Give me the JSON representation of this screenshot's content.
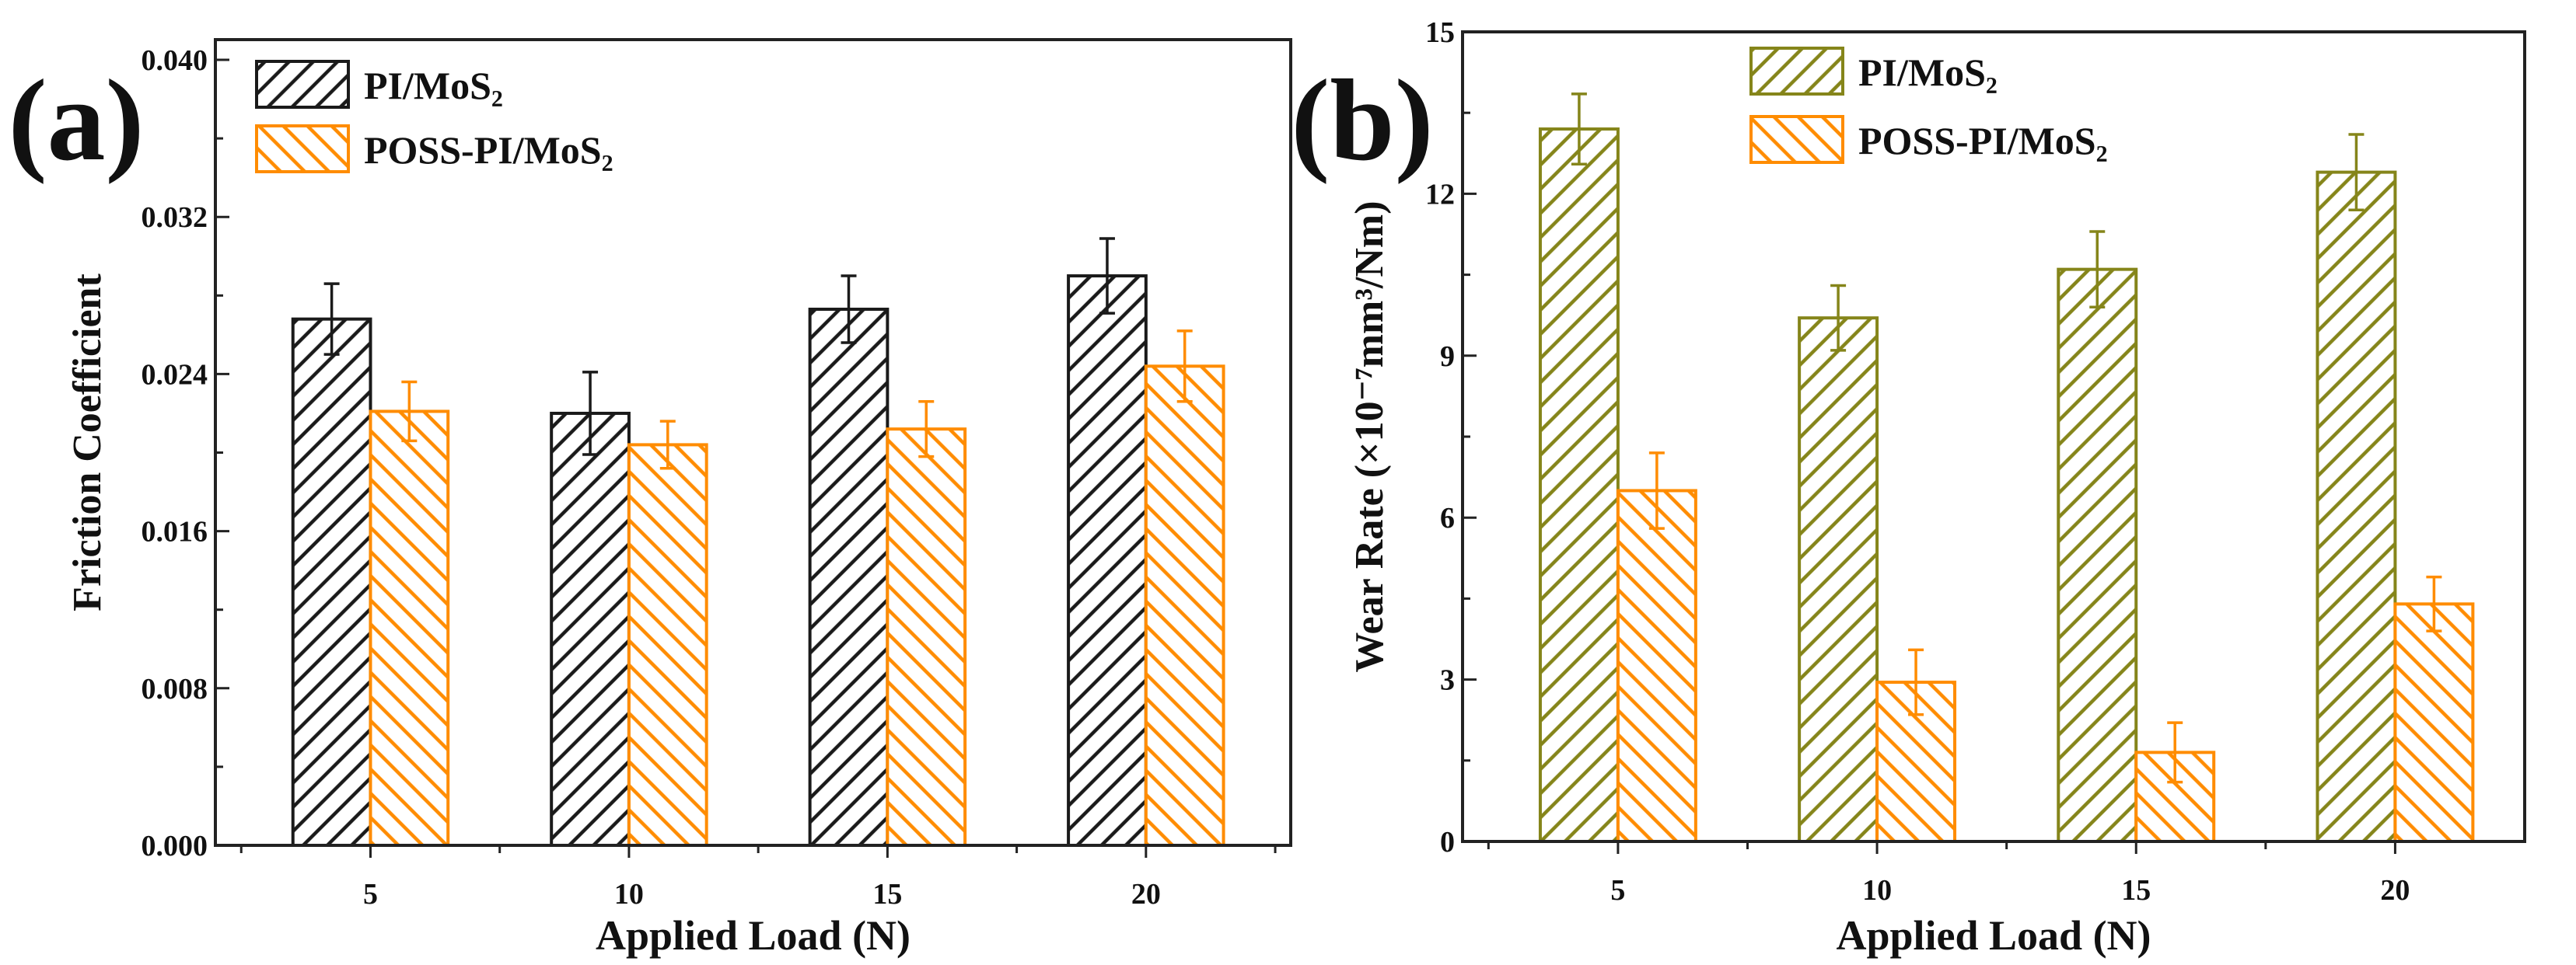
{
  "chart_data": [
    {
      "panel_label": "(a)",
      "type": "bar",
      "title": "",
      "xlabel": "Applied Load (N)",
      "ylabel": "Friction Coefficient",
      "categories": [
        5,
        10,
        15,
        20
      ],
      "category_labels": [
        "5",
        "10",
        "15",
        "20"
      ],
      "xlim": [
        2,
        22.8
      ],
      "ylim": [
        0,
        0.04103
      ],
      "yticks": [
        0.0,
        0.008,
        0.016,
        0.024,
        0.032,
        0.04
      ],
      "ytick_labels": [
        "0.000",
        "0.008",
        "0.016",
        "0.024",
        "0.032",
        "0.040"
      ],
      "grid": false,
      "legend_position": "top-left",
      "series": [
        {
          "name": "PI/MoS₂",
          "color": "#1a1a1a",
          "hatch": "forward",
          "values": [
            0.0268,
            0.022,
            0.0273,
            0.029
          ],
          "errors": [
            0.0018,
            0.0021,
            0.0017,
            0.0019
          ]
        },
        {
          "name": "POSS-PI/MoS₂",
          "color": "#ff8c00",
          "hatch": "backward",
          "values": [
            0.0221,
            0.0204,
            0.0212,
            0.0244
          ],
          "errors": [
            0.0015,
            0.0012,
            0.0014,
            0.0018
          ]
        }
      ]
    },
    {
      "panel_label": "(b)",
      "type": "bar",
      "title": "",
      "xlabel": "Applied Load (N)",
      "ylabel": "Wear Rate (×10⁻⁷mm³/Nm)",
      "categories": [
        5,
        10,
        15,
        20
      ],
      "category_labels": [
        "5",
        "10",
        "15",
        "20"
      ],
      "xlim": [
        2,
        22.5
      ],
      "ylim": [
        0,
        15
      ],
      "yticks": [
        0,
        3,
        6,
        9,
        12,
        15
      ],
      "ytick_labels": [
        "0",
        "3",
        "6",
        "9",
        "12",
        "15"
      ],
      "grid": false,
      "legend_position": "top-center",
      "series": [
        {
          "name": "PI/MoS₂",
          "color": "#85851a",
          "hatch": "forward",
          "values": [
            13.2,
            9.7,
            10.6,
            12.4
          ],
          "errors": [
            0.65,
            0.6,
            0.7,
            0.7
          ]
        },
        {
          "name": "POSS-PI/MoS₂",
          "color": "#ff8c00",
          "hatch": "backward",
          "values": [
            6.5,
            2.95,
            1.65,
            4.4
          ],
          "errors": [
            0.7,
            0.6,
            0.55,
            0.5
          ]
        }
      ]
    }
  ]
}
